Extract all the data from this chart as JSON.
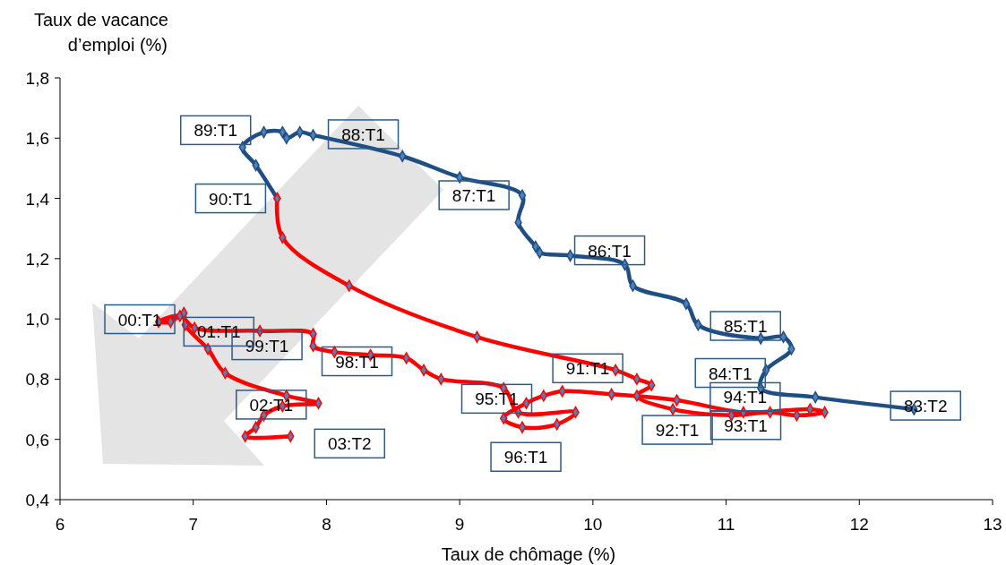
{
  "chart_data": {
    "type": "line",
    "xlabel": "Taux de chômage (%)",
    "ylabel": "Taux de vacance\nd’emploi (%)",
    "xlim": [
      6,
      13
    ],
    "xticks": [
      6,
      7,
      8,
      9,
      10,
      11,
      12,
      13
    ],
    "ylim": [
      0.4,
      1.8
    ],
    "yticks": [
      {
        "value": 0.4,
        "label": "0,4"
      },
      {
        "value": 0.6,
        "label": "0,6"
      },
      {
        "value": 0.8,
        "label": "0,8"
      },
      {
        "value": 1.0,
        "label": "1,0"
      },
      {
        "value": 1.2,
        "label": "1,2"
      },
      {
        "value": 1.4,
        "label": "1,4"
      },
      {
        "value": 1.6,
        "label": "1,6"
      },
      {
        "value": 1.8,
        "label": "1,8"
      }
    ],
    "marker": "diamond",
    "line_style": "solid",
    "grid": false,
    "series": [
      {
        "color": "#1f4e83",
        "x": [
          12.41,
          11.67,
          11.26,
          11.3,
          11.49,
          11.43,
          11.26,
          10.79,
          10.7,
          10.3,
          10.24,
          9.83,
          9.6,
          9.57,
          9.44,
          9.47,
          9.0,
          8.57,
          7.9,
          7.8,
          7.7,
          7.67,
          7.53,
          7.37,
          7.47,
          7.63
        ],
        "values": [
          0.7,
          0.74,
          0.77,
          0.83,
          0.9,
          0.94,
          0.935,
          0.98,
          1.05,
          1.11,
          1.18,
          1.21,
          1.22,
          1.24,
          1.32,
          1.41,
          1.47,
          1.54,
          1.61,
          1.62,
          1.6,
          1.62,
          1.62,
          1.57,
          1.51,
          1.4
        ]
      },
      {
        "color": "#ff0000",
        "x": [
          7.63,
          7.67,
          8.17,
          9.13,
          10.17,
          10.33,
          10.44,
          10.33,
          10.6,
          11.04,
          11.33,
          11.53,
          11.74,
          11.63,
          11.13,
          10.63,
          10.14,
          9.77,
          9.63,
          9.5,
          9.33,
          9.47,
          9.73,
          9.87,
          9.44,
          9.33,
          8.86,
          8.73,
          8.6,
          8.33,
          8.06,
          7.9,
          7.9,
          7.5,
          7.01,
          6.9,
          6.74,
          6.83,
          6.93,
          6.94,
          7.11,
          7.24,
          7.7,
          7.94,
          7.67,
          7.53,
          7.47,
          7.39,
          7.73
        ],
        "values": [
          1.4,
          1.27,
          1.11,
          0.94,
          0.83,
          0.8,
          0.78,
          0.745,
          0.7,
          0.68,
          0.69,
          0.68,
          0.69,
          0.7,
          0.69,
          0.73,
          0.75,
          0.76,
          0.745,
          0.72,
          0.67,
          0.64,
          0.65,
          0.69,
          0.69,
          0.77,
          0.8,
          0.83,
          0.87,
          0.88,
          0.89,
          0.91,
          0.95,
          0.96,
          0.97,
          1.01,
          0.99,
          0.99,
          1.02,
          0.98,
          0.9,
          0.82,
          0.745,
          0.72,
          0.71,
          0.68,
          0.64,
          0.61,
          0.61
        ]
      }
    ],
    "annotations": [
      {
        "text": "83:T2",
        "x": 12.41,
        "y": 0.7
      },
      {
        "text": "84:T1",
        "x": 11.26,
        "y": 0.77
      },
      {
        "text": "85:T1",
        "x": 11.26,
        "y": 0.935
      },
      {
        "text": "86:T1",
        "x": 10.24,
        "y": 1.18
      },
      {
        "text": "87:T1",
        "x": 9.0,
        "y": 1.47
      },
      {
        "text": "88:T1",
        "x": 7.9,
        "y": 1.61
      },
      {
        "text": "89:T1",
        "x": 7.37,
        "y": 1.57
      },
      {
        "text": "90:T1",
        "x": 7.63,
        "y": 1.4
      },
      {
        "text": "91:T1",
        "x": 10.17,
        "y": 0.83
      },
      {
        "text": "92:T1",
        "x": 10.6,
        "y": 0.7
      },
      {
        "text": "93:T1",
        "x": 11.04,
        "y": 0.68
      },
      {
        "text": "94:T1",
        "x": 11.13,
        "y": 0.69
      },
      {
        "text": "95:T1",
        "x": 9.5,
        "y": 0.72
      },
      {
        "text": "96:T1",
        "x": 9.47,
        "y": 0.64
      },
      {
        "text": "98:T1",
        "x": 8.33,
        "y": 0.88
      },
      {
        "text": "99:T1",
        "x": 7.5,
        "y": 0.96
      },
      {
        "text": "00:T1",
        "x": 6.74,
        "y": 0.99
      },
      {
        "text": "01:T1",
        "x": 6.93,
        "y": 1.02
      },
      {
        "text": "02:T1",
        "x": 7.7,
        "y": 0.745
      },
      {
        "text": "03:T2",
        "x": 7.73,
        "y": 0.61
      }
    ]
  }
}
